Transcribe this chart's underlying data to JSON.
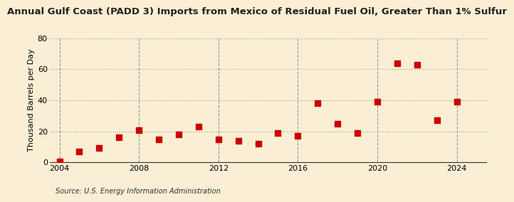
{
  "title": "Annual Gulf Coast (PADD 3) Imports from Mexico of Residual Fuel Oil, Greater Than 1% Sulfur",
  "ylabel": "Thousand Barrels per Day",
  "source": "Source: U.S. Energy Information Administration",
  "background_color": "#faefd4",
  "years": [
    2004,
    2005,
    2006,
    2007,
    2008,
    2009,
    2010,
    2011,
    2012,
    2013,
    2014,
    2015,
    2016,
    2017,
    2018,
    2019,
    2020,
    2021,
    2022,
    2023,
    2024
  ],
  "values": [
    0.5,
    7,
    9.5,
    16,
    21,
    15,
    18,
    23,
    15,
    14,
    12,
    19,
    17,
    38,
    25,
    19,
    39,
    64,
    63,
    27,
    39
  ],
  "marker_color": "#cc0000",
  "marker_size": 28,
  "xlim": [
    2003.5,
    2025.5
  ],
  "ylim": [
    0,
    80
  ],
  "yticks": [
    0,
    20,
    40,
    60,
    80
  ],
  "xticks": [
    2004,
    2008,
    2012,
    2016,
    2020,
    2024
  ],
  "grid_color": "#999999",
  "title_fontsize": 9.5,
  "label_fontsize": 8,
  "tick_fontsize": 8,
  "source_fontsize": 7
}
